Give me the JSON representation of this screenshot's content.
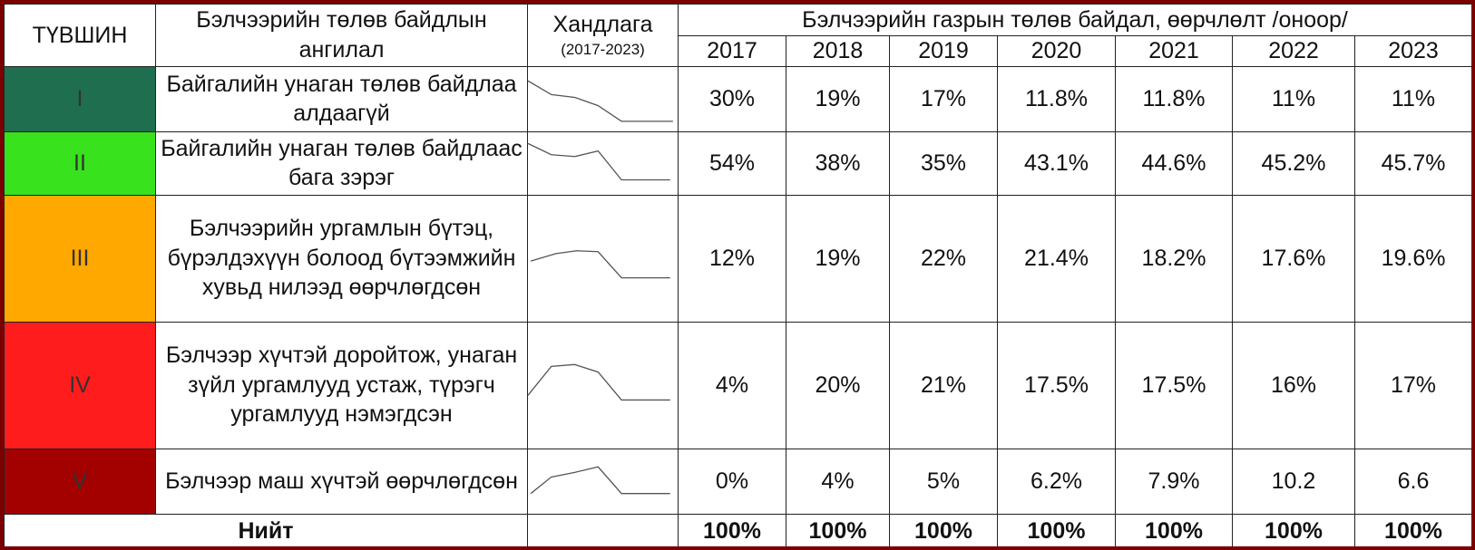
{
  "header": {
    "level": "ТҮВШИН",
    "category": "Бэлчээрийн төлөв байдлын ангилал",
    "trend": "Хандлага",
    "trend_period": "(2017-2023)",
    "group": "Бэлчээрийн газрын төлөв байдал, өөрчлөлт /оноор/",
    "years": [
      "2017",
      "2018",
      "2019",
      "2020",
      "2021",
      "2022",
      "2023"
    ]
  },
  "rows": [
    {
      "level": "I",
      "category": "Байгалийн унаган төлөв байдлаа алдаагүй",
      "values": [
        "30%",
        "19%",
        "17%",
        "11.8%",
        "11.8%",
        "11%",
        "11%"
      ]
    },
    {
      "level": "II",
      "category": "Байгалийн унаган төлөв байдлаас бага зэрэг",
      "values": [
        "54%",
        "38%",
        "35%",
        "43.1%",
        "44.6%",
        "45.2%",
        "45.7%"
      ]
    },
    {
      "level": "III",
      "category": "Бэлчээрийн ургамлын бүтэц, бүрэлдэхүүн болоод бүтээмжийн хувьд нилээд өөрчлөгдсөн",
      "values": [
        "12%",
        "19%",
        "22%",
        "21.4%",
        "18.2%",
        "17.6%",
        "19.6%"
      ]
    },
    {
      "level": "IV",
      "category": "Бэлчээр хүчтэй доройтож, унаган зүйл ургамлууд устаж, түрэгч ургамлууд нэмэгдсэн",
      "values": [
        "4%",
        "20%",
        "21%",
        "17.5%",
        "17.5%",
        "16%",
        "17%"
      ]
    },
    {
      "level": "V",
      "category": "Бэлчээр маш хүчтэй өөрчлөгдсөн",
      "values": [
        "0%",
        "4%",
        "5%",
        "6.2%",
        "7.9%",
        "10.2",
        "6.6"
      ]
    }
  ],
  "total": {
    "label": "Нийт",
    "values": [
      "100%",
      "100%",
      "100%",
      "100%",
      "100%",
      "100%",
      "100%"
    ]
  }
}
